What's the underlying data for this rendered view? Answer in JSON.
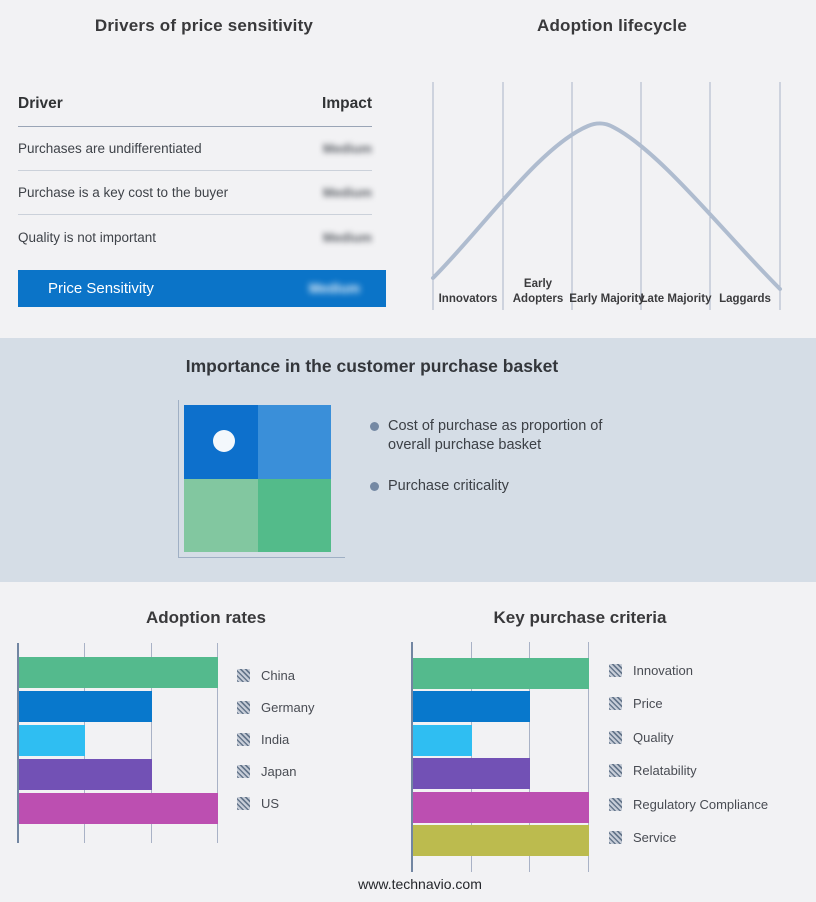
{
  "page": {
    "background": "#F2F2F4",
    "band_background": "#D5DDE6",
    "footer": "www.technavio.com"
  },
  "drivers": {
    "title": "Drivers of price sensitivity",
    "headers": {
      "driver": "Driver",
      "impact": "Impact"
    },
    "rows": [
      {
        "driver": "Purchases are undifferentiated",
        "impact": "Medium",
        "impact_blurred": true
      },
      {
        "driver": "Purchase is a key cost to the buyer",
        "impact": "Medium",
        "impact_blurred": true
      },
      {
        "driver": "Quality is not important",
        "impact": "Medium",
        "impact_blurred": true
      }
    ],
    "summary": {
      "label": "Price Sensitivity",
      "impact": "Medium",
      "impact_blurred": true,
      "bar_color": "#0B74C8"
    }
  },
  "lifecycle": {
    "title": "Adoption lifecycle",
    "stages": [
      "Innovators",
      "Early Adopters",
      "Early Majority",
      "Late Majority",
      "Laggards"
    ],
    "curve_color": "#AFBCCF",
    "gridline_color": "#A9B4C8"
  },
  "importance": {
    "title": "Importance in the customer purchase basket",
    "bullets": [
      "Cost of purchase as proportion of overall purchase basket",
      "Purchase criticality"
    ],
    "quadrant_colors": [
      "#0D70CC",
      "#3A8FD9",
      "#82C7A0",
      "#53BB8A"
    ],
    "bullet_color": "#7589A4"
  },
  "chart_data": [
    {
      "type": "bar",
      "title": "Adoption rates",
      "orientation": "horizontal",
      "categories": [
        "China",
        "Germany",
        "India",
        "Japan",
        "US"
      ],
      "values": [
        3,
        2,
        1,
        2,
        3
      ],
      "xlim": [
        0,
        3
      ],
      "xlabel": "",
      "ylabel": "",
      "colors": [
        "#54BA8D",
        "#0878CC",
        "#2FBEF2",
        "#7251B5",
        "#BC4FB1"
      ],
      "grid": true,
      "legend_position": "right"
    },
    {
      "type": "bar",
      "title": "Key purchase criteria",
      "orientation": "horizontal",
      "categories": [
        "Innovation",
        "Price",
        "Quality",
        "Relatability",
        "Regulatory Compliance",
        "Service"
      ],
      "values": [
        3,
        2,
        1,
        2,
        3,
        3
      ],
      "xlim": [
        0,
        3
      ],
      "xlabel": "",
      "ylabel": "",
      "colors": [
        "#54BA8D",
        "#0878CC",
        "#2FBEF2",
        "#7251B5",
        "#BC4FB1",
        "#BCBB4E"
      ],
      "grid": true,
      "legend_position": "right"
    },
    {
      "type": "line",
      "title": "Adoption lifecycle",
      "x": [
        "Innovators",
        "Early Adopters",
        "Early Majority",
        "Late Majority",
        "Laggards"
      ],
      "y_normalized": [
        0.07,
        0.55,
        1.0,
        0.62,
        0.06
      ],
      "xlabel": "",
      "ylabel": "",
      "grid": true,
      "legend_position": "none"
    }
  ]
}
